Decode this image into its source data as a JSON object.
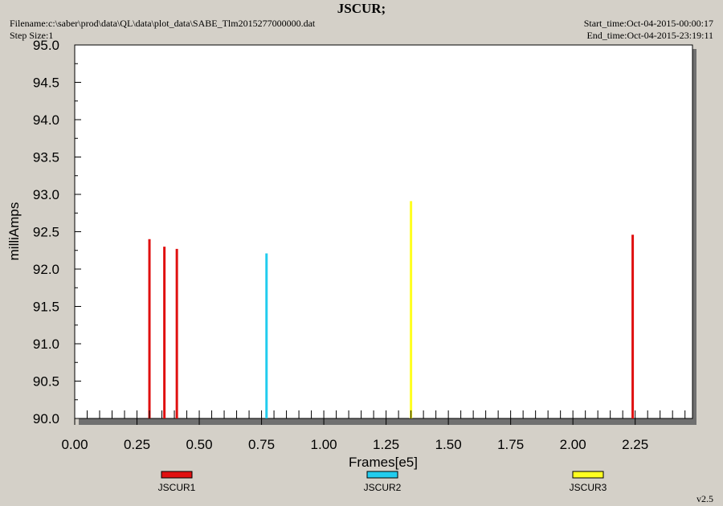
{
  "header": {
    "title": "JSCUR;",
    "filename": "Filename:c:\\saber\\prod\\data\\QL\\data\\plot_data\\SABE_Tlm2015277000000.dat",
    "step_size": "Step Size:1",
    "start_time": "Start_time:Oct-04-2015-00:00:17",
    "end_time": "End_time:Oct-04-2015-23:19:11"
  },
  "footer": {
    "version": "v2.5"
  },
  "chart_data": {
    "type": "bar",
    "title": "JSCUR;",
    "xlabel": "Frames[e5]",
    "ylabel": "milliAmps",
    "xlim": [
      0,
      2.48
    ],
    "ylim": [
      90.0,
      95.0
    ],
    "xticks": [
      "0.00",
      "0.25",
      "0.50",
      "0.75",
      "1.00",
      "1.25",
      "1.50",
      "1.75",
      "2.00",
      "2.25"
    ],
    "yticks": [
      "90.0",
      "90.5",
      "91.0",
      "91.5",
      "92.0",
      "92.5",
      "93.0",
      "93.5",
      "94.0",
      "94.5",
      "95.0"
    ],
    "grid": false,
    "legend_position": "bottom",
    "series": [
      {
        "name": "JSCUR1",
        "color": "#e01010",
        "points": [
          {
            "x": 0.3,
            "y": 92.4
          },
          {
            "x": 0.36,
            "y": 92.3
          },
          {
            "x": 0.41,
            "y": 92.27
          },
          {
            "x": 2.24,
            "y": 92.46
          }
        ]
      },
      {
        "name": "JSCUR2",
        "color": "#22ccee",
        "points": [
          {
            "x": 0.77,
            "y": 92.21
          }
        ]
      },
      {
        "name": "JSCUR3",
        "color": "#ffff20",
        "points": [
          {
            "x": 1.35,
            "y": 92.91
          }
        ]
      }
    ]
  }
}
